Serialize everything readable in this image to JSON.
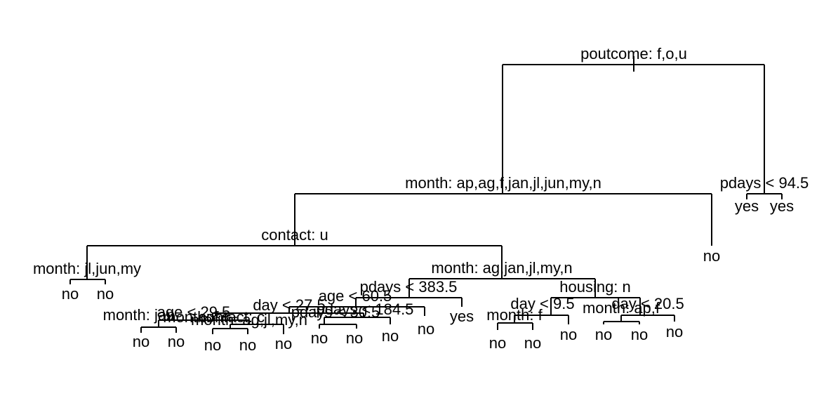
{
  "tree": {
    "split_labels": {
      "root": "poutcome: f,o,u",
      "n2": "month: ap,ag,f,jan,jl,jun,my,n",
      "n3": "pdays < 94.5",
      "n4": "contact: u",
      "n8": "month: jl,jun,my",
      "n9": "month: ag,jan,jl,my,n",
      "n18": "pdays < 383.5",
      "n19": "housing: n",
      "n36": "age < 60.5",
      "n72a": "day < 27.5",
      "n72b": "pdays < 184.5",
      "n144a": "month: jan",
      "n144b": "age < 29.5",
      "n144c": "month: f",
      "n144d": "contact: c",
      "n144e": "month: ag,jl,my,n",
      "n144f": "pdays < 30.5",
      "n38": "day < 9.5",
      "n76": "month: f",
      "n39": "day < 20.5",
      "n78": "month: ap,f"
    },
    "leaf_labels": {
      "l16": "no",
      "l17": "no",
      "l5": "no",
      "l6": "yes",
      "l7": "yes",
      "l37": "yes",
      "l73": "no",
      "lA1": "no",
      "lA2": "no",
      "lB1": "no",
      "lB2": "no",
      "lB3": "no",
      "lC1": "no",
      "lC2": "no",
      "lC3": "no",
      "lD1": "no",
      "lD2": "no",
      "lD3": "no",
      "lE1": "no",
      "lE2": "no",
      "lE3": "no"
    }
  }
}
